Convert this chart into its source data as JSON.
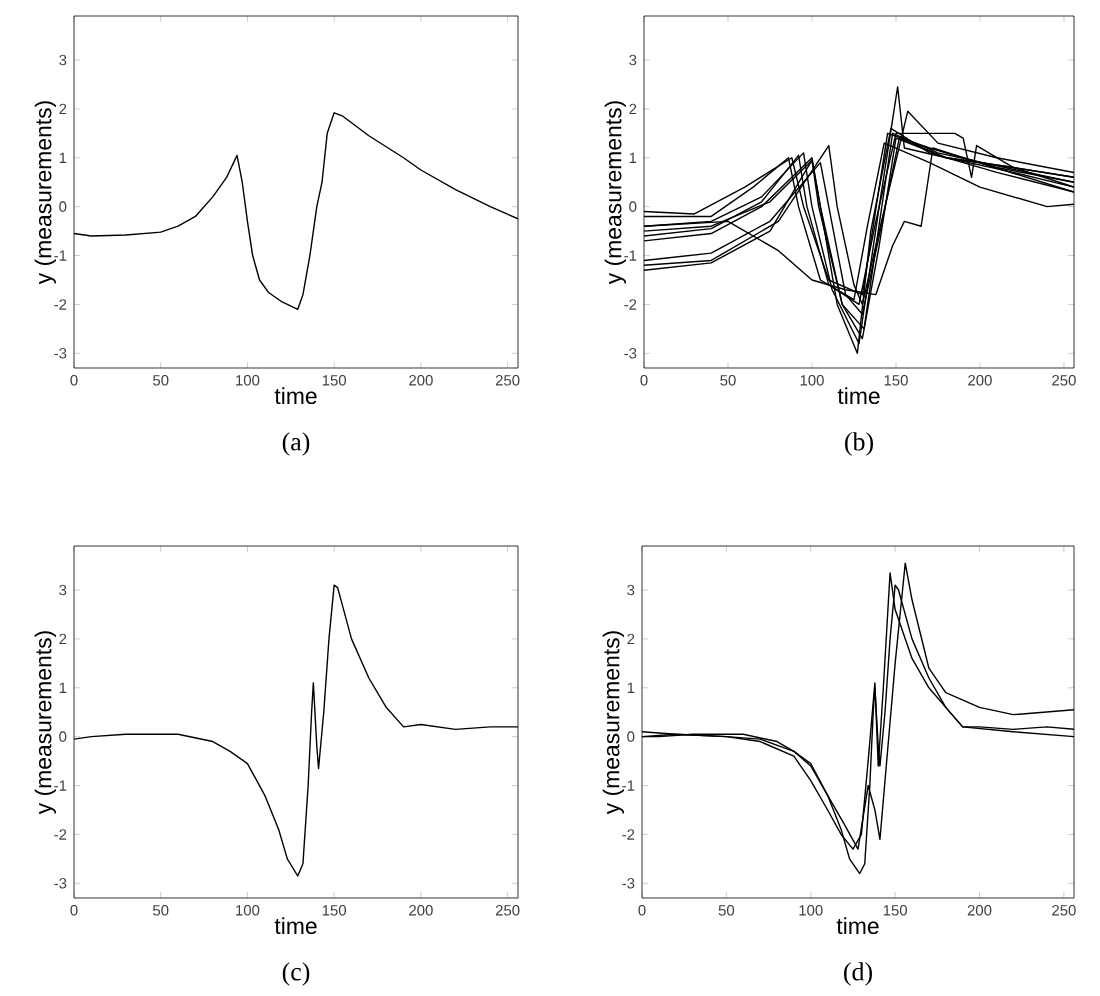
{
  "chart_data": [
    {
      "type": "line",
      "title": "(a)",
      "xlabel": "time",
      "ylabel": "y (measurements)",
      "xlim": [
        0,
        256
      ],
      "ylim": [
        -3.3,
        3.9
      ],
      "xticks": [
        0,
        50,
        100,
        150,
        200,
        250
      ],
      "yticks": [
        -3,
        -2,
        -1,
        0,
        1,
        2,
        3
      ],
      "line_style": "solid",
      "marker": "none",
      "series": [
        {
          "color": "#000000",
          "x": [
            0,
            10,
            30,
            50,
            60,
            70,
            80,
            88,
            94,
            97,
            100,
            103,
            107,
            112,
            120,
            129,
            132,
            136,
            140,
            143,
            146,
            150,
            155,
            170,
            190,
            200,
            220,
            240,
            256
          ],
          "values": [
            -0.55,
            -0.6,
            -0.58,
            -0.52,
            -0.4,
            -0.2,
            0.2,
            0.6,
            1.05,
            0.5,
            -0.3,
            -1.0,
            -1.5,
            -1.75,
            -1.95,
            -2.1,
            -1.8,
            -1.0,
            0.0,
            0.5,
            1.5,
            1.92,
            1.85,
            1.45,
            1.0,
            0.75,
            0.35,
            0.0,
            -0.25
          ]
        }
      ]
    },
    {
      "type": "line",
      "title": "(b)",
      "xlabel": "time",
      "ylabel": "y (measurements)",
      "xlim": [
        0,
        256
      ],
      "ylim": [
        -3.3,
        3.9
      ],
      "xticks": [
        0,
        50,
        100,
        150,
        200,
        250
      ],
      "yticks": [
        -3,
        -2,
        -1,
        0,
        1,
        2,
        3
      ],
      "line_style": "solid",
      "marker": "none",
      "series": [
        {
          "color": "#000000",
          "x": [
            0,
            30,
            60,
            88,
            95,
            110,
            130,
            136,
            145,
            170,
            210,
            256
          ],
          "values": [
            -0.1,
            -0.15,
            0.4,
            1.0,
            0.0,
            -1.5,
            -1.8,
            -0.5,
            1.5,
            1.2,
            0.8,
            0.5
          ]
        },
        {
          "color": "#000000",
          "x": [
            0,
            40,
            70,
            95,
            100,
            112,
            128,
            140,
            151,
            155,
            180,
            220,
            256
          ],
          "values": [
            -0.4,
            -0.3,
            0.2,
            1.1,
            0.0,
            -1.7,
            -2.8,
            0.0,
            2.45,
            1.2,
            1.0,
            0.7,
            0.4
          ]
        },
        {
          "color": "#000000",
          "x": [
            0,
            40,
            70,
            100,
            105,
            115,
            127,
            135,
            147,
            170,
            210,
            256
          ],
          "values": [
            -0.7,
            -0.55,
            0.0,
            1.0,
            0.0,
            -2.0,
            -3.0,
            -0.5,
            1.6,
            1.1,
            0.7,
            0.3
          ]
        },
        {
          "color": "#000000",
          "x": [
            0,
            40,
            80,
            110,
            115,
            125,
            130,
            140,
            157,
            175,
            210,
            256
          ],
          "values": [
            -1.2,
            -1.1,
            -0.3,
            1.25,
            0.0,
            -1.6,
            -2.0,
            -0.5,
            1.95,
            1.3,
            1.0,
            0.7
          ]
        },
        {
          "color": "#000000",
          "x": [
            0,
            40,
            75,
            100,
            104,
            118,
            130,
            140,
            150,
            180,
            220,
            256
          ],
          "values": [
            -1.3,
            -1.15,
            -0.5,
            0.95,
            0.0,
            -2.0,
            -2.7,
            -0.8,
            1.4,
            1.0,
            0.8,
            0.6
          ]
        },
        {
          "color": "#000000",
          "x": [
            0,
            50,
            80,
            100,
            120,
            138,
            148,
            155,
            165,
            172,
            190,
            256
          ],
          "values": [
            -0.4,
            -0.3,
            -0.9,
            -1.5,
            -1.7,
            -1.8,
            -0.8,
            -0.3,
            -0.4,
            1.2,
            1.0,
            0.3
          ]
        },
        {
          "color": "#000000",
          "x": [
            0,
            40,
            70,
            92,
            97,
            110,
            128,
            138,
            150,
            185,
            190,
            195,
            198,
            220,
            256
          ],
          "values": [
            -0.6,
            -0.45,
            0.1,
            1.05,
            0.0,
            -1.6,
            -2.0,
            -0.3,
            1.5,
            1.5,
            1.4,
            0.6,
            1.25,
            0.8,
            0.4
          ]
        },
        {
          "color": "#000000",
          "x": [
            0,
            40,
            75,
            105,
            110,
            120,
            130,
            140,
            152,
            180,
            220,
            256
          ],
          "values": [
            -1.1,
            -0.95,
            -0.3,
            0.9,
            0.0,
            -1.8,
            -2.2,
            -0.6,
            1.4,
            1.0,
            0.8,
            0.6
          ]
        },
        {
          "color": "#000000",
          "x": [
            0,
            40,
            65,
            86,
            92,
            105,
            125,
            133,
            143,
            170,
            200,
            240,
            256
          ],
          "values": [
            -0.2,
            -0.2,
            0.4,
            1.0,
            0.0,
            -1.5,
            -1.9,
            -0.4,
            1.3,
            0.9,
            0.4,
            0.0,
            0.05
          ]
        },
        {
          "color": "#000000",
          "x": [
            0,
            40,
            75,
            100,
            105,
            118,
            131,
            139,
            148,
            175,
            215,
            256
          ],
          "values": [
            -0.5,
            -0.4,
            0.1,
            0.95,
            0.0,
            -2.0,
            -2.5,
            -0.6,
            1.5,
            1.1,
            0.8,
            0.5
          ]
        }
      ]
    },
    {
      "type": "line",
      "title": "(c)",
      "xlabel": "time",
      "ylabel": "y (measurements)",
      "xlim": [
        0,
        256
      ],
      "ylim": [
        -3.3,
        3.9
      ],
      "xticks": [
        0,
        50,
        100,
        150,
        200,
        250
      ],
      "yticks": [
        -3,
        -2,
        -1,
        0,
        1,
        2,
        3
      ],
      "line_style": "solid",
      "marker": "none",
      "series": [
        {
          "color": "#000000",
          "x": [
            0,
            10,
            30,
            60,
            80,
            90,
            100,
            110,
            118,
            123,
            129,
            132,
            135,
            137,
            138,
            140,
            141,
            144,
            147,
            150,
            152,
            160,
            170,
            180,
            190,
            200,
            220,
            240,
            256
          ],
          "values": [
            -0.05,
            0.0,
            0.05,
            0.05,
            -0.1,
            -0.3,
            -0.55,
            -1.2,
            -1.9,
            -2.5,
            -2.85,
            -2.6,
            -1.0,
            0.5,
            1.1,
            -0.2,
            -0.65,
            0.5,
            2.0,
            3.1,
            3.05,
            2.0,
            1.2,
            0.6,
            0.2,
            0.25,
            0.15,
            0.2,
            0.2
          ]
        }
      ]
    },
    {
      "type": "line",
      "title": "(d)",
      "xlabel": "time",
      "ylabel": "y (measurements)",
      "xlim": [
        0,
        256
      ],
      "ylim": [
        -3.3,
        3.9
      ],
      "xticks": [
        0,
        50,
        100,
        150,
        200,
        250
      ],
      "yticks": [
        -3,
        -2,
        -1,
        0,
        1,
        2,
        3
      ],
      "line_style": "solid",
      "marker": "none",
      "series": [
        {
          "color": "#000000",
          "x": [
            0,
            20,
            50,
            70,
            90,
            100,
            110,
            118,
            125,
            130,
            134,
            138,
            140,
            143,
            147,
            150,
            160,
            170,
            190,
            220,
            256
          ],
          "values": [
            0.1,
            0.05,
            0.0,
            -0.1,
            -0.4,
            -0.9,
            -1.5,
            -2.0,
            -2.3,
            -2.0,
            -0.5,
            1.1,
            -0.6,
            1.0,
            3.35,
            2.6,
            1.6,
            1.0,
            0.2,
            0.1,
            0.0
          ]
        },
        {
          "color": "#000000",
          "x": [
            0,
            10,
            30,
            60,
            80,
            90,
            100,
            110,
            118,
            123,
            129,
            132,
            135,
            137,
            138,
            140,
            141,
            144,
            147,
            150,
            152,
            160,
            170,
            180,
            190,
            200,
            220,
            240,
            256
          ],
          "values": [
            0.0,
            0.0,
            0.05,
            0.05,
            -0.1,
            -0.3,
            -0.55,
            -1.2,
            -1.9,
            -2.5,
            -2.8,
            -2.6,
            -1.0,
            0.5,
            1.0,
            -0.2,
            -0.6,
            0.5,
            2.0,
            3.1,
            3.0,
            2.0,
            1.2,
            0.6,
            0.2,
            0.2,
            0.15,
            0.2,
            0.15
          ]
        },
        {
          "color": "#000000",
          "x": [
            0,
            20,
            50,
            70,
            90,
            100,
            110,
            120,
            128,
            134,
            138,
            141,
            145,
            150,
            156,
            160,
            170,
            180,
            200,
            220,
            256
          ],
          "values": [
            0.0,
            0.05,
            0.0,
            -0.05,
            -0.3,
            -0.6,
            -1.2,
            -1.8,
            -2.3,
            -1.0,
            -1.5,
            -2.1,
            -0.5,
            1.5,
            3.55,
            2.8,
            1.4,
            0.9,
            0.6,
            0.45,
            0.55
          ]
        }
      ]
    }
  ]
}
